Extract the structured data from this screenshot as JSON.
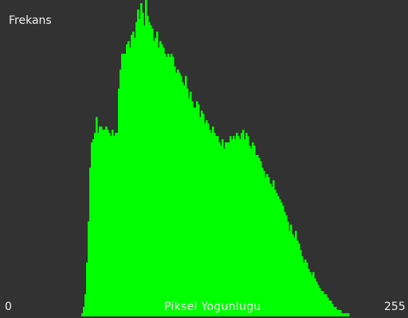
{
  "chart_data": {
    "type": "bar",
    "ylabel": "Frekans",
    "xlabel": "Piksel Yogunlugu",
    "xmin_label": "0",
    "xmax_label": "255",
    "xlim": [
      0,
      255
    ],
    "ylim": [
      0,
      100
    ],
    "bar_color": "#00ff00",
    "background_color": "#323232",
    "label_color": "#f0f0f0",
    "grid": false,
    "legend": "none",
    "x": [
      51,
      52,
      53,
      54,
      55,
      56,
      57,
      58,
      59,
      60,
      61,
      62,
      63,
      64,
      65,
      66,
      67,
      68,
      69,
      70,
      71,
      72,
      73,
      74,
      75,
      76,
      77,
      78,
      79,
      80,
      81,
      82,
      83,
      84,
      85,
      86,
      87,
      88,
      89,
      90,
      91,
      92,
      93,
      94,
      95,
      96,
      97,
      98,
      99,
      100,
      101,
      102,
      103,
      104,
      105,
      106,
      107,
      108,
      109,
      110,
      111,
      112,
      113,
      114,
      115,
      116,
      117,
      118,
      119,
      120,
      121,
      122,
      123,
      124,
      125,
      126,
      127,
      128,
      129,
      130,
      131,
      132,
      133,
      134,
      135,
      136,
      137,
      138,
      139,
      140,
      141,
      142,
      143,
      144,
      145,
      146,
      147,
      148,
      149,
      150,
      151,
      152,
      153,
      154,
      155,
      156,
      157,
      158,
      159,
      160,
      161,
      162,
      163,
      164,
      165,
      166,
      167,
      168,
      169,
      170,
      171,
      172,
      173,
      174,
      175,
      176,
      177,
      178,
      179,
      180,
      181,
      182,
      183,
      184,
      185,
      186,
      187,
      188,
      189,
      190,
      191,
      192,
      193,
      194,
      195,
      196,
      197,
      198,
      199,
      200,
      201,
      202,
      203,
      204,
      205,
      206,
      207,
      208,
      209,
      210,
      211,
      212,
      213,
      214,
      215,
      216,
      217,
      218
    ],
    "values": [
      1,
      3,
      7,
      17,
      30,
      47,
      55,
      56,
      58,
      63,
      58,
      60,
      60,
      59,
      59,
      60,
      59,
      58,
      57,
      59,
      57,
      58,
      58,
      72,
      78,
      83,
      83,
      83,
      86,
      87,
      85,
      89,
      90,
      88,
      93,
      97,
      94,
      99,
      96,
      92,
      100,
      95,
      93,
      92,
      91,
      87,
      88,
      90,
      85,
      87,
      86,
      85,
      83,
      82,
      83,
      82,
      83,
      82,
      79,
      77,
      78,
      77,
      76,
      74,
      73,
      76,
      72,
      69,
      71,
      68,
      66,
      66,
      68,
      67,
      63,
      65,
      64,
      61,
      62,
      61,
      59,
      58,
      60,
      58,
      57,
      57,
      55,
      54,
      56,
      53,
      55,
      55,
      55,
      57,
      56,
      57,
      56,
      58,
      57,
      56,
      58,
      59,
      56,
      58,
      57,
      54,
      53,
      55,
      54,
      51,
      51,
      50,
      49,
      47,
      46,
      44,
      45,
      44,
      42,
      41,
      43,
      40,
      39,
      38,
      37,
      36,
      35,
      33,
      32,
      30,
      27,
      29,
      26,
      25,
      27,
      24,
      23,
      21,
      19,
      17,
      18,
      17,
      15,
      14,
      13,
      14,
      12,
      11,
      10,
      9,
      8,
      8,
      7,
      7,
      6,
      5,
      5,
      4,
      3,
      3,
      2,
      2,
      2,
      1,
      1,
      1,
      1,
      1
    ]
  }
}
